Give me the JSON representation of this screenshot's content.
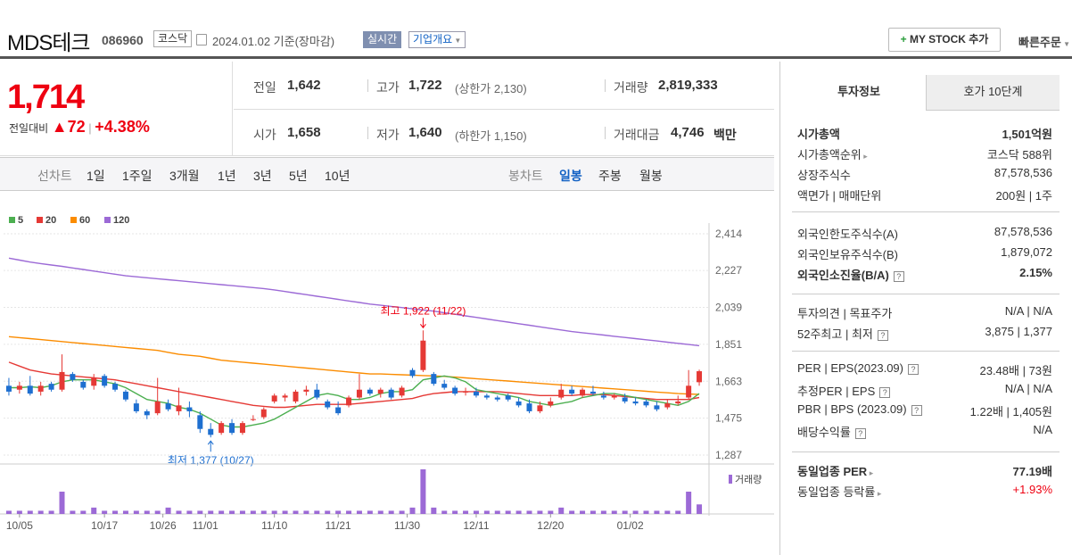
{
  "header": {
    "name": "MDS테크",
    "code": "086960",
    "market": "코스닥",
    "date_text": "2024.01.02  기준(장마감)",
    "realtime": "실시간",
    "overview": "기업개요",
    "mystock": "MY STOCK 추가",
    "quick_order": "빠른주문"
  },
  "price": {
    "current": "1,714",
    "change_label": "전일대비",
    "change": "72",
    "change_rate": "+4.38%"
  },
  "quote": {
    "prev_label": "전일",
    "prev": "1,642",
    "high_label": "고가",
    "high": "1,722",
    "upper_limit": "(상한가 2,130)",
    "volume_label": "거래량",
    "volume": "2,819,333",
    "open_label": "시가",
    "open": "1,658",
    "low_label": "저가",
    "low": "1,640",
    "lower_limit": "(하한가 1,150)",
    "amount_label": "거래대금",
    "amount": "4,746",
    "amount_unit": "백만"
  },
  "line_tabs": {
    "label": "선차트",
    "items": [
      "1일",
      "1주일",
      "3개월",
      "1년",
      "3년",
      "5년",
      "10년"
    ]
  },
  "candle_tabs": {
    "label": "봉차트",
    "items": [
      "일봉",
      "주봉",
      "월봉"
    ],
    "selected": "일봉"
  },
  "right_panel": {
    "tabs": [
      "투자정보",
      "호가 10단계"
    ],
    "rows1": [
      {
        "label": "시가총액",
        "value": "1,501억원"
      },
      {
        "label": "시가총액순위",
        "value": "코스닥 588위"
      },
      {
        "label": "상장주식수",
        "value": "87,578,536"
      },
      {
        "label": "액면가 | 매매단위",
        "value": "200원 | 1주"
      }
    ],
    "rows2": [
      {
        "label": "외국인한도주식수(A)",
        "value": "87,578,536"
      },
      {
        "label": "외국인보유주식수(B)",
        "value": "1,879,072"
      },
      {
        "label": "외국인소진율(B/A)",
        "value": "2.15%"
      }
    ],
    "rows3": [
      {
        "label": "투자의견 | 목표주가",
        "value": "N/A | N/A"
      },
      {
        "label": "52주최고 | 최저",
        "value": "3,875 | 1,377"
      }
    ],
    "rows4": [
      {
        "label": "PER | EPS(2023.09)",
        "value": "23.48배 | 73원"
      },
      {
        "label": "추정PER | EPS",
        "value": "N/A | N/A"
      },
      {
        "label": "PBR | BPS (2023.09)",
        "value": "1.22배 | 1,405원"
      },
      {
        "label": "배당수익률",
        "value": "N/A"
      }
    ],
    "rows5": [
      {
        "label": "동일업종 PER",
        "value": "77.19배"
      },
      {
        "label": "동일업종 등락률",
        "value": "+1.93%"
      }
    ]
  },
  "chart_data": {
    "type": "candlestick",
    "legend": [
      "5",
      "20",
      "60",
      "120"
    ],
    "ma_colors": [
      "#4caf50",
      "#e53935",
      "#fb8c00",
      "#9c6ad6"
    ],
    "y_ticks": [
      "2,414",
      "2,227",
      "2,039",
      "1,851",
      "1,663",
      "1,475",
      "1,287"
    ],
    "ylim": [
      1287,
      2414
    ],
    "x_labels": [
      "10/05",
      "10/17",
      "10/26",
      "11/01",
      "11/10",
      "11/21",
      "11/30",
      "12/11",
      "12/20",
      "01/02"
    ],
    "high_annotation": "최고 1,922 (11/22)",
    "low_annotation": "최저 1,377 (10/27)",
    "volume_label": "거래량",
    "candles": [
      [
        1640,
        1680,
        1610,
        1590
      ],
      [
        1620,
        1660,
        1640,
        1600
      ],
      [
        1640,
        1690,
        1600,
        1590
      ],
      [
        1610,
        1660,
        1640,
        1590
      ],
      [
        1650,
        1660,
        1620,
        1610
      ],
      [
        1620,
        1800,
        1710,
        1610
      ],
      [
        1700,
        1710,
        1670,
        1660
      ],
      [
        1660,
        1670,
        1630,
        1620
      ],
      [
        1640,
        1700,
        1680,
        1620
      ],
      [
        1690,
        1700,
        1640,
        1630
      ],
      [
        1650,
        1660,
        1620,
        1610
      ],
      [
        1610,
        1620,
        1570,
        1560
      ],
      [
        1550,
        1570,
        1510,
        1500
      ],
      [
        1510,
        1520,
        1490,
        1470
      ],
      [
        1500,
        1680,
        1560,
        1490
      ],
      [
        1550,
        1570,
        1520,
        1510
      ],
      [
        1510,
        1630,
        1540,
        1490
      ],
      [
        1530,
        1560,
        1510,
        1480
      ],
      [
        1490,
        1510,
        1420,
        1400
      ],
      [
        1420,
        1450,
        1390,
        1377
      ],
      [
        1400,
        1460,
        1450,
        1390
      ],
      [
        1450,
        1470,
        1400,
        1390
      ],
      [
        1400,
        1460,
        1450,
        1390
      ],
      [
        1470,
        1490,
        1470,
        1460
      ],
      [
        1480,
        1530,
        1520,
        1470
      ],
      [
        1560,
        1600,
        1590,
        1550
      ],
      [
        1580,
        1600,
        1590,
        1560
      ],
      [
        1560,
        1620,
        1610,
        1550
      ],
      [
        1610,
        1640,
        1620,
        1590
      ],
      [
        1620,
        1650,
        1580,
        1570
      ],
      [
        1560,
        1570,
        1530,
        1520
      ],
      [
        1530,
        1560,
        1500,
        1490
      ],
      [
        1540,
        1590,
        1580,
        1530
      ],
      [
        1580,
        1700,
        1620,
        1570
      ],
      [
        1620,
        1630,
        1600,
        1590
      ],
      [
        1600,
        1630,
        1620,
        1580
      ],
      [
        1620,
        1630,
        1580,
        1570
      ],
      [
        1590,
        1640,
        1630,
        1580
      ],
      [
        1720,
        1730,
        1690,
        1680
      ],
      [
        1720,
        1922,
        1870,
        1710
      ],
      [
        1700,
        1710,
        1650,
        1640
      ],
      [
        1650,
        1670,
        1630,
        1620
      ],
      [
        1630,
        1640,
        1600,
        1590
      ],
      [
        1610,
        1630,
        1610,
        1590
      ],
      [
        1610,
        1630,
        1590,
        1580
      ],
      [
        1590,
        1600,
        1580,
        1570
      ],
      [
        1580,
        1590,
        1570,
        1560
      ],
      [
        1590,
        1600,
        1570,
        1560
      ],
      [
        1560,
        1580,
        1540,
        1530
      ],
      [
        1550,
        1570,
        1510,
        1500
      ],
      [
        1510,
        1560,
        1540,
        1500
      ],
      [
        1540,
        1580,
        1560,
        1530
      ],
      [
        1580,
        1650,
        1620,
        1570
      ],
      [
        1620,
        1640,
        1600,
        1590
      ],
      [
        1590,
        1630,
        1620,
        1580
      ],
      [
        1610,
        1640,
        1600,
        1590
      ],
      [
        1590,
        1610,
        1580,
        1570
      ],
      [
        1580,
        1600,
        1590,
        1570
      ],
      [
        1580,
        1600,
        1560,
        1550
      ],
      [
        1560,
        1580,
        1550,
        1540
      ],
      [
        1560,
        1570,
        1540,
        1530
      ],
      [
        1540,
        1560,
        1520,
        1510
      ],
      [
        1530,
        1570,
        1550,
        1520
      ],
      [
        1550,
        1590,
        1560,
        1540
      ],
      [
        1580,
        1720,
        1640,
        1570
      ],
      [
        1658,
        1722,
        1714,
        1640
      ]
    ],
    "ma5": [
      1630,
      1630,
      1635,
      1630,
      1640,
      1660,
      1670,
      1670,
      1670,
      1660,
      1650,
      1630,
      1600,
      1570,
      1560,
      1550,
      1530,
      1520,
      1500,
      1470,
      1440,
      1430,
      1430,
      1440,
      1450,
      1470,
      1500,
      1530,
      1560,
      1590,
      1600,
      1590,
      1570,
      1570,
      1580,
      1600,
      1610,
      1610,
      1620,
      1670,
      1680,
      1690,
      1680,
      1660,
      1620,
      1610,
      1600,
      1590,
      1580,
      1560,
      1550,
      1540,
      1550,
      1560,
      1580,
      1590,
      1600,
      1600,
      1590,
      1580,
      1570,
      1560,
      1550,
      1540,
      1560,
      1600
    ],
    "ma20": [
      1760,
      1740,
      1720,
      1710,
      1700,
      1695,
      1690,
      1685,
      1680,
      1675,
      1670,
      1660,
      1650,
      1640,
      1630,
      1620,
      1610,
      1600,
      1590,
      1580,
      1570,
      1560,
      1550,
      1540,
      1535,
      1530,
      1530,
      1535,
      1540,
      1545,
      1545,
      1545,
      1545,
      1550,
      1555,
      1560,
      1565,
      1570,
      1575,
      1590,
      1600,
      1605,
      1610,
      1610,
      1610,
      1610,
      1610,
      1605,
      1600,
      1595,
      1590,
      1590,
      1590,
      1590,
      1595,
      1595,
      1595,
      1590,
      1585,
      1580,
      1575,
      1570,
      1570,
      1570,
      1570,
      1580
    ],
    "ma60": [
      1890,
      1885,
      1880,
      1875,
      1870,
      1865,
      1860,
      1855,
      1850,
      1845,
      1840,
      1835,
      1830,
      1825,
      1820,
      1810,
      1800,
      1795,
      1790,
      1780,
      1770,
      1765,
      1760,
      1755,
      1750,
      1745,
      1740,
      1735,
      1730,
      1725,
      1720,
      1715,
      1710,
      1705,
      1700,
      1700,
      1698,
      1696,
      1694,
      1692,
      1690,
      1688,
      1684,
      1680,
      1676,
      1672,
      1668,
      1664,
      1660,
      1656,
      1652,
      1648,
      1644,
      1640,
      1636,
      1632,
      1628,
      1624,
      1620,
      1616,
      1612,
      1608,
      1604,
      1600,
      1598,
      1596
    ],
    "ma120": [
      2290,
      2280,
      2270,
      2262,
      2255,
      2248,
      2240,
      2232,
      2224,
      2216,
      2208,
      2200,
      2195,
      2190,
      2185,
      2180,
      2175,
      2170,
      2165,
      2160,
      2155,
      2150,
      2145,
      2140,
      2135,
      2128,
      2120,
      2112,
      2104,
      2096,
      2088,
      2080,
      2072,
      2064,
      2056,
      2050,
      2044,
      2038,
      2032,
      2026,
      2020,
      2012,
      2004,
      1996,
      1988,
      1980,
      1972,
      1964,
      1956,
      1948,
      1940,
      1932,
      1924,
      1916,
      1910,
      1904,
      1898,
      1892,
      1886,
      1880,
      1874,
      1868,
      1862,
      1856,
      1850,
      1844
    ],
    "volumes": [
      1,
      1,
      1,
      1,
      1,
      7,
      1,
      1,
      2,
      1,
      1,
      1,
      1,
      1,
      1,
      2,
      1,
      1,
      1,
      1,
      1,
      1,
      1,
      1,
      1,
      1,
      1,
      1,
      1,
      1,
      1,
      1,
      1,
      1,
      1,
      1,
      1,
      1,
      2,
      14,
      2,
      1,
      1,
      1,
      1,
      1,
      1,
      1,
      1,
      1,
      1,
      1,
      2,
      1,
      1,
      1,
      1,
      1,
      1,
      1,
      1,
      1,
      1,
      1,
      7,
      3
    ]
  }
}
